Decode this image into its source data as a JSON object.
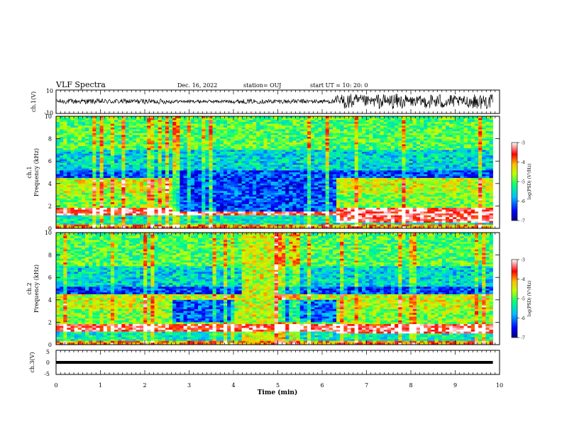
{
  "header": {
    "title": "VLF Spectra",
    "date": "Dec. 16, 2022",
    "station": "station= OUJ",
    "start": "start  UT =   10: 20: 0"
  },
  "chart_data": [
    {
      "type": "line",
      "id": "ch1-waveform",
      "ylabel": "ch.1(V)",
      "ylim": [
        -10,
        10
      ],
      "yticks": [
        "10",
        "-10"
      ],
      "xlim": [
        0,
        9.85
      ],
      "description_level": "noisy waveform, larger amplitude after ~6.3 min"
    },
    {
      "type": "heatmap",
      "id": "ch1-spectrogram",
      "ylabel": "ch.1\nFrequency (kHz)",
      "ylim": [
        0,
        10
      ],
      "yticks": [
        "0",
        "2",
        "4",
        "6",
        "8",
        "10"
      ],
      "xlim": [
        0,
        9.85
      ],
      "colorbar": {
        "label": "log(PSD) (V²/Hz)",
        "range": [
          -7,
          -3
        ],
        "ticks": [
          "-3",
          "-4",
          "-5",
          "-6",
          "-7"
        ]
      }
    },
    {
      "type": "heatmap",
      "id": "ch2-spectrogram",
      "ylabel": "ch.2\nFrequency (kHz)",
      "ylim": [
        0,
        10
      ],
      "yticks": [
        "0",
        "2",
        "4",
        "6",
        "8",
        "10"
      ],
      "xlim": [
        0,
        9.85
      ],
      "colorbar": {
        "label": "log(PSD) (V²/Hz)",
        "range": [
          -7,
          -3
        ],
        "ticks": [
          "-3",
          "-4",
          "-5",
          "-6",
          "-7"
        ]
      }
    },
    {
      "type": "line",
      "id": "ch3-waveform",
      "ylabel": "ch.3(V)",
      "ylim": [
        -5,
        5
      ],
      "yticks": [
        "5",
        "0",
        "-5"
      ],
      "constant_value": 0,
      "xlim": [
        0,
        9.85
      ]
    }
  ],
  "xaxis": {
    "label": "Time  (min)",
    "range": [
      0,
      10
    ],
    "ticks": [
      "0",
      "1",
      "2",
      "3",
      "4",
      "5",
      "6",
      "7",
      "8",
      "9",
      "10"
    ]
  },
  "ch1_ylabel_top": "ch.1",
  "ch1_ylabel_bottom": "Frequency  (kHz)",
  "ch2_ylabel_top": "ch.2",
  "ch2_ylabel_bottom": "Frequency  (kHz)",
  "cbar_label": "log(PSD) (V²/Hz)",
  "colors": {
    "low": "#00008b",
    "mid": "#00ff7f",
    "high": "#ff0000",
    "max": "#ffffff"
  }
}
